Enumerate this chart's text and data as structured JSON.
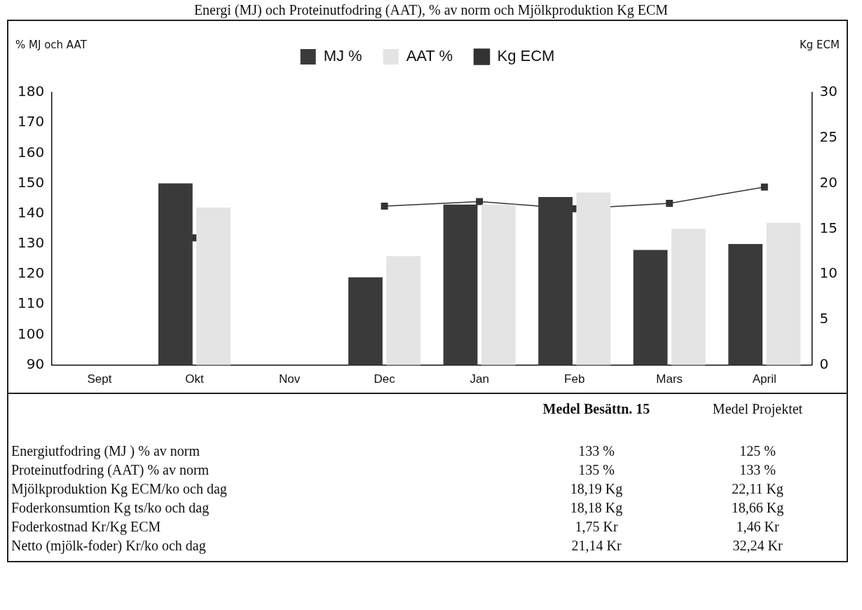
{
  "chart_data": {
    "type": "bar",
    "title": "Energi (MJ) och Proteinutfodring (AAT), % av norm och Mjölkproduktion Kg ECM",
    "categories": [
      "Sept",
      "Okt",
      "Nov",
      "Dec",
      "Jan",
      "Feb",
      "Mars",
      "April"
    ],
    "series": [
      {
        "name": "MJ %",
        "color": "#3a3a3a",
        "values": [
          null,
          150,
          null,
          119,
          143,
          145.5,
          128,
          130
        ]
      },
      {
        "name": "AAT %",
        "color": "#e4e4e4",
        "values": [
          null,
          142,
          null,
          126,
          143,
          147,
          135,
          137
        ]
      },
      {
        "name": "Kg ECM",
        "type": "line",
        "axis": "y2",
        "color": "#333333",
        "values": [
          null,
          14,
          null,
          17.5,
          18,
          17.2,
          17.8,
          19.6
        ]
      }
    ],
    "ylabel": "% MJ och AAT",
    "y2label": "Kg ECM",
    "ylim": [
      90,
      180
    ],
    "yticks": [
      90,
      100,
      110,
      120,
      130,
      140,
      150,
      160,
      170,
      180
    ],
    "y2lim": [
      0,
      30
    ],
    "y2ticks": [
      0,
      5,
      10,
      15,
      20,
      25,
      30
    ],
    "grid": false,
    "legend": "top",
    "marker": "square",
    "annotations": [
      "Medel Besättn. 15",
      "Medel Projektet",
      "Energiutfodring (MJ ) % av norm",
      "133 %",
      "125 %",
      "Proteinutfodring (AAT) % av norm",
      "135 %",
      "133 %",
      "Mjölkproduktion Kg ECM/ko och dag",
      "18,19 Kg",
      "22,11 Kg",
      "Foderkonsumtion Kg ts/ko och dag",
      "18,18 Kg",
      "18,66 Kg",
      "Foderkostnad Kr/Kg ECM",
      "1,75 Kr",
      "1,46 Kr",
      "Netto (mjölk-foder) Kr/ko och dag",
      "21,14 Kr",
      "32,24 Kr"
    ]
  }
}
